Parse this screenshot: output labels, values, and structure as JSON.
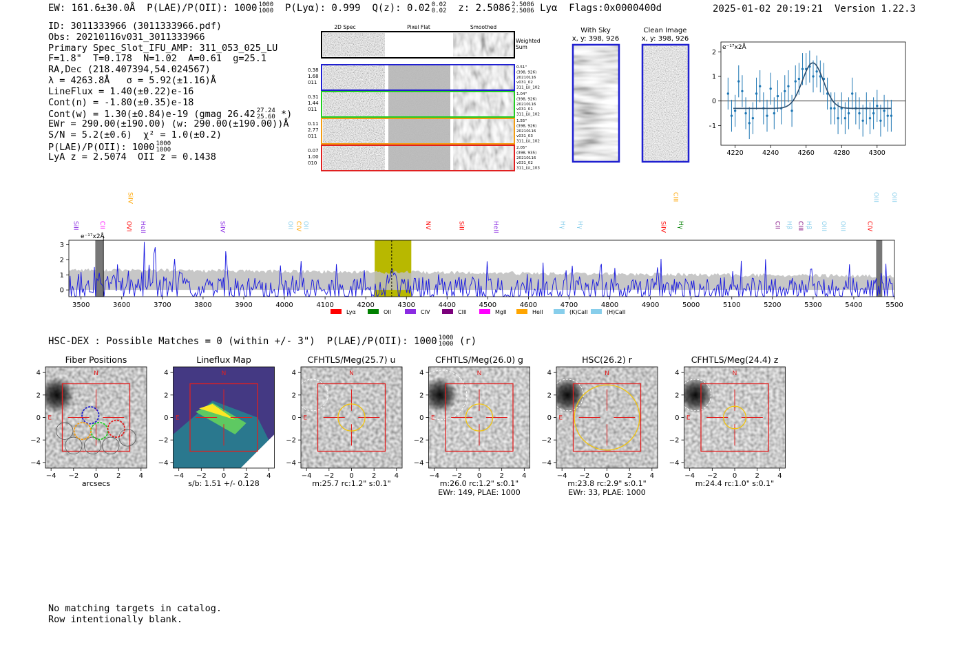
{
  "header": {
    "ew": "EW: 161.6±30.0Å",
    "plae_label": "P(LAE)/P(OII): 1000",
    "plae_hi": "1000",
    "plae_lo": "1000",
    "plya": "P(Lyα): 0.999",
    "qz_label": "Q(z): 0.02",
    "qz_hi": "0.02",
    "qz_lo": "0.02",
    "z_label": "z: 2.5086",
    "z_hi": "2.5086",
    "z_lo": "2.5086",
    "line": "Lyα",
    "flags": "Flags:0x0000400d",
    "datetime": "2025-01-02 20:19:21",
    "version": "Version 1.22.3"
  },
  "info": {
    "id": "ID: 3011333966 (3011333966.pdf)",
    "obs": "Obs: 20210116v031_3011333966",
    "primary": "Primary Spec_Slot_IFU_AMP: 311_053_025_LU",
    "fiber": "F=1.8\"  T=0.178  N=1.02  A=0.61  g=25.1",
    "radec": "RA,Dec (218.407394,54.024567)",
    "lambda": "λ = 4263.8Å   σ = 5.92(±1.16)Å",
    "lineflux": "LineFlux = 1.40(±0.22)e-16",
    "contn": "Cont(n) = -1.80(±0.35)e-18",
    "contw": "Cont(w) = 1.30(±0.84)e-19 (gmag 26.42",
    "contw_hi": "27.24",
    "contw_lo": "25.60",
    "contw_end": "*)",
    "ewr": "EWr = 290.00(±190.00) (w: 290.00(±190.00))Å",
    "sn": "S/N = 5.2(±0.6)  χ² = 1.0(±0.2)",
    "plae": "P(LAE)/P(OII): 1000",
    "plae_hi": "1000",
    "plae_lo": "1000",
    "lyaz": "LyA z = 2.5074  OII z = 0.1438"
  },
  "cutouts": {
    "col_2d": "2D Spec",
    "col_flat": "Pixel Flat",
    "col_smooth": "Smoothed",
    "weighted": "Weighted",
    "sum": "Sum",
    "rows": [
      {
        "color": "#1f1fd0",
        "v1": "0.38",
        "v2": "1.68",
        "v3": "011",
        "d1": "0.51\"",
        "d2": "(398, 926)",
        "d3": "20210116",
        "d4": "v031_02",
        "d5": "311_LU_102"
      },
      {
        "color": "#22cc22",
        "v1": "0.31",
        "v2": "1.44",
        "v3": "011",
        "d1": "1.04\"",
        "d2": "(398, 926)",
        "d3": "20210116",
        "d4": "v031_01",
        "d5": "311_LU_102"
      },
      {
        "color": "#f39c12",
        "v1": "0.11",
        "v2": "2.77",
        "v3": "011",
        "d1": "1.55\"",
        "d2": "(398, 926)",
        "d3": "20210116",
        "d4": "v031_03",
        "d5": "311_LU_102"
      },
      {
        "color": "#e02020",
        "v1": "0.07",
        "v2": "1.00",
        "v3": "010",
        "d1": "2.05\"",
        "d2": "(398, 935)",
        "d3": "20210116",
        "d4": "v031_02",
        "d5": "311_LU_103"
      }
    ]
  },
  "sky": {
    "with_title": "With Sky",
    "with_coords": "x, y: 398, 926",
    "clean_title": "Clean Image",
    "clean_coords": "x, y: 398, 926"
  },
  "fit_plot": {
    "ylabel_unit": "e⁻¹⁷x2Å",
    "xticks": [
      "4220",
      "4240",
      "4260",
      "4280",
      "4300"
    ],
    "yticks": [
      "2",
      "1",
      "0",
      "−1"
    ]
  },
  "chart_data": [
    {
      "type": "scatter",
      "title": "",
      "xlabel": "",
      "ylabel": "e⁻¹⁷x2Å",
      "xlim": [
        4212,
        4316
      ],
      "ylim": [
        -1.8,
        2.4
      ],
      "x": [
        4216,
        4218,
        4220,
        4222,
        4224,
        4226,
        4228,
        4230,
        4232,
        4234,
        4236,
        4238,
        4240,
        4242,
        4244,
        4246,
        4248,
        4250,
        4252,
        4254,
        4256,
        4258,
        4260,
        4262,
        4264,
        4266,
        4268,
        4270,
        4272,
        4274,
        4276,
        4278,
        4280,
        4282,
        4284,
        4286,
        4288,
        4290,
        4292,
        4294,
        4296,
        4298,
        4300,
        4302,
        4304,
        4306,
        4308
      ],
      "y": [
        0.3,
        -0.6,
        -0.4,
        0.8,
        0.4,
        -0.5,
        -0.9,
        -0.7,
        0.3,
        0.6,
        -0.3,
        -0.6,
        0.5,
        -0.5,
        0.2,
        -0.3,
        0.4,
        0.6,
        -0.4,
        0.8,
        0.9,
        1.3,
        1.3,
        1.4,
        1.0,
        1.2,
        1.0,
        0.9,
        0.3,
        -0.3,
        -0.3,
        -0.7,
        -0.3,
        -0.7,
        -0.5,
        0.3,
        -0.3,
        -0.5,
        -0.8,
        -0.3,
        -0.7,
        -0.5,
        -0.2,
        -0.8,
        -0.4,
        -0.6,
        -0.6
      ],
      "yerr": 0.65,
      "model": {
        "center": 4263.8,
        "sigma": 5.92,
        "amplitude": 1.85,
        "baseline": -0.3
      }
    },
    {
      "type": "line",
      "title": "",
      "xlabel": "",
      "ylabel": "e⁻¹⁷x2Å",
      "xlim": [
        3470,
        5500
      ],
      "ylim": [
        -0.45,
        3.3
      ],
      "xticks": [
        3500,
        3600,
        3700,
        3800,
        3900,
        4000,
        4100,
        4200,
        4300,
        4400,
        4500,
        4600,
        4700,
        4800,
        4900,
        5000,
        5100,
        5200,
        5300,
        5400,
        5500
      ],
      "yticks": [
        0,
        1,
        2,
        3
      ],
      "highlight_range": [
        4222,
        4312
      ],
      "line_center": 4263.8,
      "masked_ranges": [
        [
          3535,
          3555
        ],
        [
          5455,
          5470
        ]
      ],
      "series": [
        {
          "name": "spectrum",
          "color": "#1515e0",
          "seed": 11,
          "n": 680
        },
        {
          "name": "error",
          "color": "#bdbdbd",
          "level_start": 1.35,
          "level_end": 0.9
        }
      ],
      "legend": [
        "Lyα",
        "OII",
        "CIV",
        "CIII",
        "MgII",
        "HeII",
        "(K)CaII",
        "(H)CaII"
      ],
      "legend_colors": [
        "#ff0000",
        "#008000",
        "#8a2be2",
        "#7b007b",
        "#ff00ff",
        "#ffa500",
        "#87ceeb",
        "#87ceeb"
      ],
      "upper_lines": [
        {
          "label": "SiIV",
          "x": 3611,
          "color": "#ffa500"
        },
        {
          "label": "CIII",
          "x": 4952,
          "color": "#ffa500"
        },
        {
          "label": "OIII",
          "x": 5445,
          "color": "#87ceeb"
        },
        {
          "label": "OIII",
          "x": 5490,
          "color": "#87ceeb"
        }
      ],
      "lower_lines": [
        {
          "label": "SiII",
          "x": 3478,
          "color": "#8a2be2"
        },
        {
          "label": "CII",
          "x": 3543,
          "color": "#ff00ff"
        },
        {
          "label": "OVI",
          "x": 3608,
          "color": "#ff0000"
        },
        {
          "label": "HeII",
          "x": 3643,
          "color": "#8a2be2"
        },
        {
          "label": "SiIV",
          "x": 3838,
          "color": "#8a2be2"
        },
        {
          "label": "OII",
          "x": 4005,
          "color": "#87ceeb"
        },
        {
          "label": "CIV",
          "x": 4025,
          "color": "#ffa500"
        },
        {
          "label": "OII",
          "x": 4043,
          "color": "#87ceeb"
        },
        {
          "label": "NV",
          "x": 4344,
          "color": "#ff0000"
        },
        {
          "label": "SiII",
          "x": 4426,
          "color": "#ff0000"
        },
        {
          "label": "HeII",
          "x": 4510,
          "color": "#8a2be2"
        },
        {
          "label": "Hγ",
          "x": 4675,
          "color": "#87ceeb"
        },
        {
          "label": "Hγ",
          "x": 4718,
          "color": "#87ceeb"
        },
        {
          "label": "SiIV",
          "x": 4922,
          "color": "#ff0000"
        },
        {
          "label": "Hγ",
          "x": 4965,
          "color": "#008000"
        },
        {
          "label": "CII",
          "x": 5203,
          "color": "#7b007b"
        },
        {
          "label": "Hβ",
          "x": 5232,
          "color": "#87ceeb"
        },
        {
          "label": "CIII",
          "x": 5260,
          "color": "#7b007b"
        },
        {
          "label": "Hβ",
          "x": 5280,
          "color": "#87ceeb"
        },
        {
          "label": "OIII",
          "x": 5317,
          "color": "#87ceeb"
        },
        {
          "label": "OIII",
          "x": 5364,
          "color": "#87ceeb"
        },
        {
          "label": "CIV",
          "x": 5430,
          "color": "#ff0000"
        }
      ]
    }
  ],
  "hsc": {
    "text": "HSC-DEX : Possible Matches = 0 (within +/- 3\")  P(LAE)/P(OII): 1000",
    "hi": "1000",
    "lo": "1000",
    "band": "(r)"
  },
  "stamps": {
    "xticks": [
      "−4",
      "−2",
      "0",
      "2",
      "4"
    ],
    "yticks": [
      "4",
      "2",
      "0",
      "−2",
      "−4"
    ],
    "north": "N",
    "east": "E",
    "items": [
      {
        "title": "Fiber Positions",
        "cap1": "arcsecs",
        "cap2": "",
        "kind": "fibers",
        "seed": 3,
        "aper": 0
      },
      {
        "title": "Lineflux Map",
        "cap1": "s/b: 1.51 +/- 0.128",
        "cap2": "",
        "kind": "flux",
        "seed": 5,
        "aper": 0
      },
      {
        "title": "CFHTLS/Meg(25.7) u",
        "cap1": "m:25.7 rc:1.2\"  s:0.1\"",
        "cap2": "",
        "kind": "img",
        "seed": 7,
        "aper": 1.2
      },
      {
        "title": "CFHTLS/Meg(26.0) g",
        "cap1": "m:26.0 rc:1.2\"  s:0.1\"",
        "cap2": "EWr: 149, PLAE: 1000",
        "kind": "img",
        "seed": 9,
        "aper": 1.2
      },
      {
        "title": "HSC(26.2) r",
        "cap1": "m:23.8 rc:2.9\"  s:0.1\"",
        "cap2": "EWr: 33, PLAE: 1000",
        "kind": "img",
        "seed": 13,
        "aper": 2.9
      },
      {
        "title": "CFHTLS/Meg(24.4) z",
        "cap1": "m:24.4 rc:1.0\"  s:0.1\"",
        "cap2": "",
        "kind": "img",
        "seed": 17,
        "aper": 1.0
      }
    ]
  },
  "footer": {
    "line1": "No matching targets in catalog.",
    "line2": "Row intentionally blank."
  }
}
